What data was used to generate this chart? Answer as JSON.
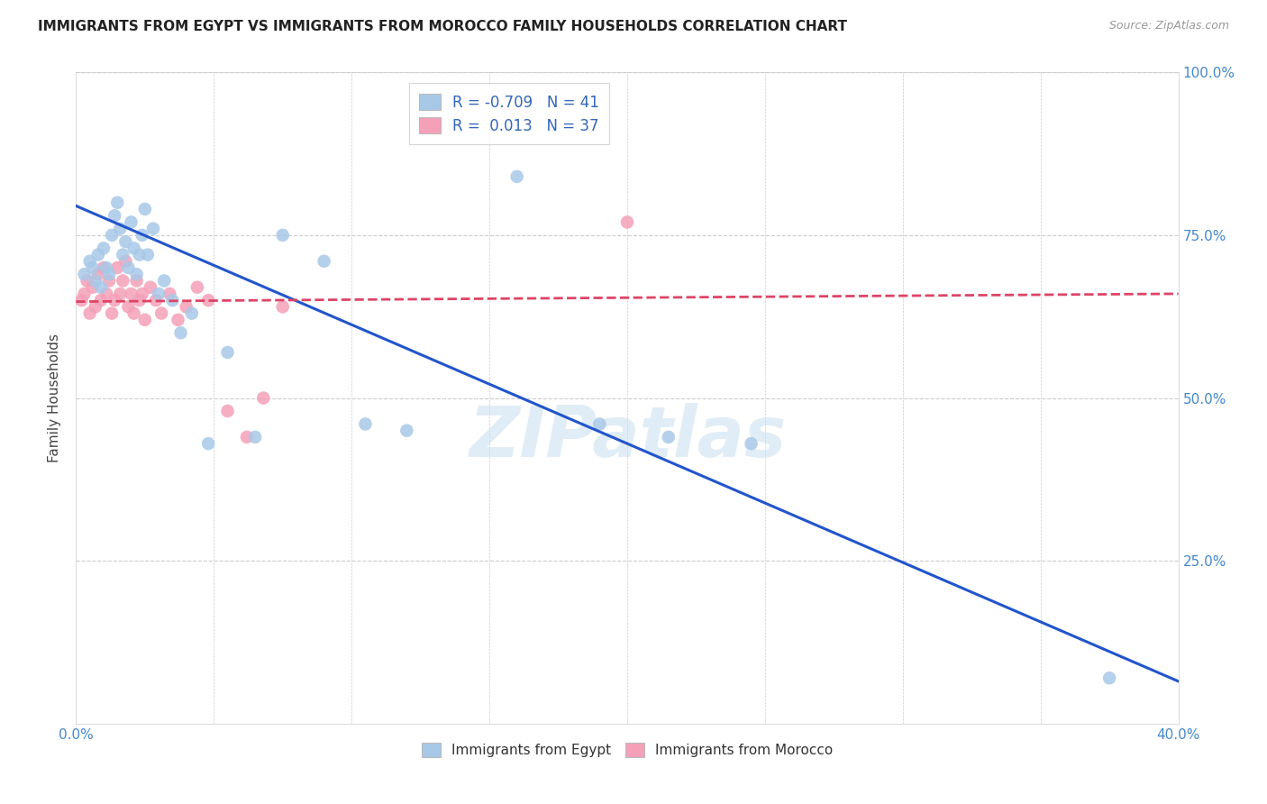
{
  "title": "IMMIGRANTS FROM EGYPT VS IMMIGRANTS FROM MOROCCO FAMILY HOUSEHOLDS CORRELATION CHART",
  "source": "Source: ZipAtlas.com",
  "ylabel": "Family Households",
  "xlim": [
    0.0,
    0.4
  ],
  "ylim": [
    0.0,
    1.0
  ],
  "xticks": [
    0.0,
    0.05,
    0.1,
    0.15,
    0.2,
    0.25,
    0.3,
    0.35,
    0.4
  ],
  "yticks": [
    0.0,
    0.25,
    0.5,
    0.75,
    1.0
  ],
  "R_egypt": -0.709,
  "N_egypt": 41,
  "R_morocco": 0.013,
  "N_morocco": 37,
  "egypt_color": "#a8c8e8",
  "morocco_color": "#f4a0b8",
  "egypt_line_color": "#2255cc",
  "morocco_line_color": "#dd4466",
  "grid_color": "#cccccc",
  "watermark": "ZIPatlas",
  "egypt_scatter_x": [
    0.003,
    0.005,
    0.006,
    0.007,
    0.008,
    0.009,
    0.01,
    0.011,
    0.012,
    0.013,
    0.014,
    0.015,
    0.016,
    0.017,
    0.018,
    0.019,
    0.02,
    0.021,
    0.022,
    0.023,
    0.024,
    0.025,
    0.026,
    0.028,
    0.03,
    0.032,
    0.035,
    0.038,
    0.042,
    0.048,
    0.055,
    0.065,
    0.075,
    0.09,
    0.105,
    0.12,
    0.16,
    0.19,
    0.215,
    0.245,
    0.375
  ],
  "egypt_scatter_y": [
    0.69,
    0.71,
    0.7,
    0.68,
    0.72,
    0.67,
    0.73,
    0.7,
    0.69,
    0.75,
    0.78,
    0.8,
    0.76,
    0.72,
    0.74,
    0.7,
    0.77,
    0.73,
    0.69,
    0.72,
    0.75,
    0.79,
    0.72,
    0.76,
    0.66,
    0.68,
    0.65,
    0.6,
    0.63,
    0.43,
    0.57,
    0.44,
    0.75,
    0.71,
    0.46,
    0.45,
    0.84,
    0.46,
    0.44,
    0.43,
    0.07
  ],
  "morocco_scatter_x": [
    0.002,
    0.003,
    0.004,
    0.005,
    0.006,
    0.007,
    0.008,
    0.009,
    0.01,
    0.011,
    0.012,
    0.013,
    0.014,
    0.015,
    0.016,
    0.017,
    0.018,
    0.019,
    0.02,
    0.021,
    0.022,
    0.023,
    0.024,
    0.025,
    0.027,
    0.029,
    0.031,
    0.034,
    0.037,
    0.04,
    0.044,
    0.048,
    0.055,
    0.062,
    0.068,
    0.075,
    0.2
  ],
  "morocco_scatter_y": [
    0.65,
    0.66,
    0.68,
    0.63,
    0.67,
    0.64,
    0.69,
    0.65,
    0.7,
    0.66,
    0.68,
    0.63,
    0.65,
    0.7,
    0.66,
    0.68,
    0.71,
    0.64,
    0.66,
    0.63,
    0.68,
    0.65,
    0.66,
    0.62,
    0.67,
    0.65,
    0.63,
    0.66,
    0.62,
    0.64,
    0.67,
    0.65,
    0.48,
    0.44,
    0.5,
    0.64,
    0.77
  ],
  "egypt_line_x0": 0.0,
  "egypt_line_y0": 0.795,
  "egypt_line_x1": 0.4,
  "egypt_line_y1": 0.065,
  "morocco_line_x0": 0.0,
  "morocco_line_y0": 0.648,
  "morocco_line_x1": 0.4,
  "morocco_line_y1": 0.66
}
